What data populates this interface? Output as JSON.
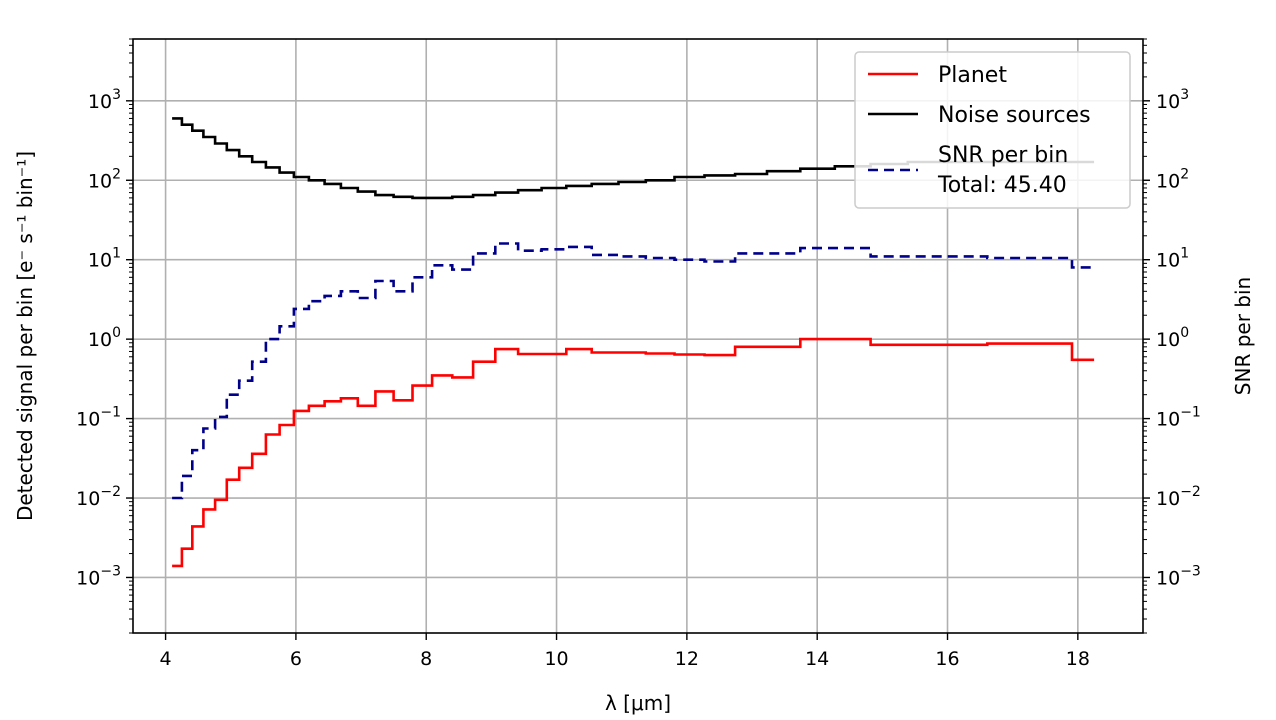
{
  "chart_data": {
    "type": "line",
    "xlabel": "λ [μm]",
    "ylabel": "Detected signal per bin [e⁻ s⁻¹ bin⁻¹]",
    "y2label": "SNR per bin",
    "xlim": [
      3.5,
      19.0
    ],
    "ylim": [
      0.0002,
      6000
    ],
    "y2lim": [
      0.0002,
      6000
    ],
    "yscale": "log",
    "grid": true,
    "legend_position": "top-right",
    "x_ticks": [
      4,
      6,
      8,
      10,
      12,
      14,
      16,
      18
    ],
    "y_ticks": [
      0.001,
      0.01,
      0.1,
      1,
      10,
      100,
      1000
    ],
    "y_tick_labels": [
      {
        "base": "10",
        "exp": "−3"
      },
      {
        "base": "10",
        "exp": "−2"
      },
      {
        "base": "10",
        "exp": "−1"
      },
      {
        "base": "10",
        "exp": "0"
      },
      {
        "base": "10",
        "exp": "1"
      },
      {
        "base": "10",
        "exp": "2"
      },
      {
        "base": "10",
        "exp": "3"
      }
    ],
    "total_label": "Total: 45.40",
    "bin_edges": [
      4.1,
      4.25,
      4.41,
      4.58,
      4.76,
      4.94,
      5.13,
      5.33,
      5.54,
      5.75,
      5.97,
      6.2,
      6.44,
      6.69,
      6.95,
      7.22,
      7.5,
      7.79,
      8.09,
      8.4,
      8.72,
      9.06,
      9.41,
      9.77,
      10.15,
      10.54,
      10.95,
      11.37,
      11.81,
      12.27,
      12.74,
      13.23,
      13.74,
      14.27,
      14.82,
      15.39,
      15.99,
      16.61,
      17.25,
      17.91,
      18.25
    ],
    "series": [
      {
        "name": "Planet",
        "color": "#ff0000",
        "style": "solid",
        "axis": "left",
        "values": [
          0.0014,
          0.0023,
          0.0044,
          0.0072,
          0.0095,
          0.017,
          0.024,
          0.036,
          0.063,
          0.083,
          0.125,
          0.145,
          0.165,
          0.18,
          0.145,
          0.22,
          0.17,
          0.26,
          0.35,
          0.33,
          0.52,
          0.75,
          0.65,
          0.65,
          0.75,
          0.68,
          0.68,
          0.66,
          0.64,
          0.63,
          0.8,
          0.8,
          1.0,
          1.0,
          0.85,
          0.85,
          0.85,
          0.88,
          0.88,
          0.55
        ]
      },
      {
        "name": "Noise sources",
        "color": "#000000",
        "style": "solid",
        "axis": "left",
        "values": [
          600,
          500,
          420,
          350,
          290,
          240,
          200,
          170,
          145,
          125,
          110,
          100,
          90,
          80,
          72,
          65,
          62,
          60,
          60,
          62,
          65,
          70,
          75,
          80,
          85,
          90,
          95,
          100,
          110,
          115,
          120,
          130,
          140,
          150,
          160,
          170,
          170,
          170,
          170,
          170
        ]
      },
      {
        "name": "SNR per bin",
        "color": "#00008b",
        "style": "dashed",
        "axis": "right",
        "values": [
          0.01,
          0.019,
          0.04,
          0.075,
          0.105,
          0.2,
          0.3,
          0.52,
          1.0,
          1.45,
          2.4,
          3.0,
          3.5,
          4.0,
          3.3,
          5.4,
          4.0,
          6.0,
          8.5,
          7.5,
          12.0,
          16.0,
          13.0,
          13.5,
          14.5,
          11.5,
          11.0,
          10.5,
          10.0,
          9.5,
          12.0,
          12.0,
          14.0,
          14.0,
          11.0,
          11.0,
          11.0,
          10.5,
          10.5,
          8.0
        ]
      }
    ]
  }
}
